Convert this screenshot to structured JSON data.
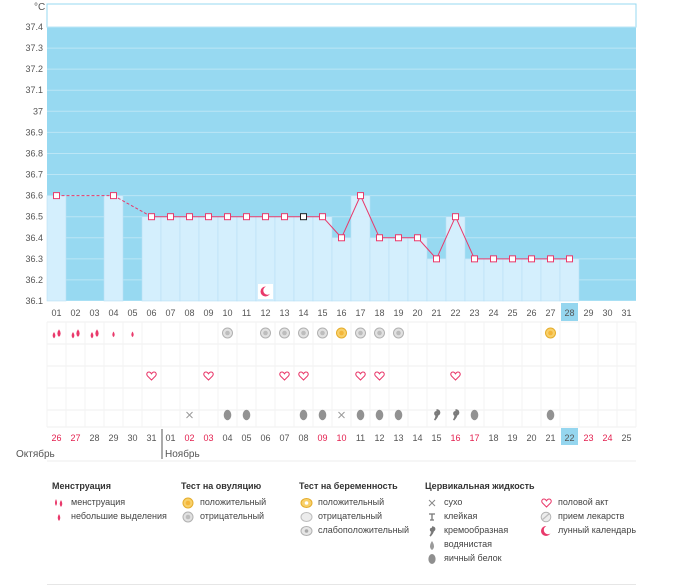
{
  "chart_data": {
    "type": "line",
    "unit_label": "°C",
    "y_ticks": [
      "37.4",
      "37.3",
      "37.2",
      "37.1",
      "37",
      "36.9",
      "36.8",
      "36.7",
      "36.6",
      "36.5",
      "36.4",
      "36.3",
      "36.2",
      "36.1"
    ],
    "ylim": [
      36.1,
      37.4
    ],
    "cycle_days": [
      "01",
      "02",
      "03",
      "04",
      "05",
      "06",
      "07",
      "08",
      "09",
      "10",
      "11",
      "12",
      "13",
      "14",
      "15",
      "16",
      "17",
      "18",
      "19",
      "20",
      "21",
      "22",
      "23",
      "24",
      "25",
      "26",
      "27",
      "28",
      "29",
      "30",
      "31"
    ],
    "current_cycle_day": "28",
    "temperatures": [
      36.6,
      null,
      null,
      36.6,
      null,
      36.5,
      36.5,
      36.5,
      36.5,
      36.5,
      36.5,
      36.5,
      36.5,
      36.5,
      36.5,
      36.4,
      36.6,
      36.4,
      36.4,
      36.4,
      36.3,
      36.5,
      36.3,
      36.3,
      36.3,
      36.3,
      36.3,
      36.3,
      null,
      null,
      null
    ],
    "bars_until_day_index": 27,
    "selected_point_day": "14",
    "interpolated_segments": [
      [
        0,
        3
      ],
      [
        3,
        5
      ]
    ],
    "calendar_dates": [
      "26",
      "27",
      "28",
      "29",
      "30",
      "31",
      "01",
      "02",
      "03",
      "04",
      "05",
      "06",
      "07",
      "08",
      "09",
      "10",
      "11",
      "12",
      "13",
      "14",
      "15",
      "16",
      "17",
      "18",
      "19",
      "20",
      "21",
      "22",
      "23",
      "24",
      "25"
    ],
    "weekend_dates_idx": [
      0,
      1,
      7,
      8,
      14,
      15,
      21,
      22,
      28,
      29
    ],
    "today_date": "22",
    "month_labels": [
      {
        "label": "Октябрь",
        "start_index": 0
      },
      {
        "label": "Ноябрь",
        "start_index": 6
      }
    ],
    "events": {
      "menstruation": [
        [
          0,
          "heavy"
        ],
        [
          1,
          "heavy"
        ],
        [
          2,
          "heavy"
        ],
        [
          3,
          "light"
        ],
        [
          4,
          "light"
        ]
      ],
      "ovulation_test": [
        [
          9,
          "negative"
        ],
        [
          11,
          "negative"
        ],
        [
          12,
          "negative"
        ],
        [
          13,
          "negative"
        ],
        [
          14,
          "negative"
        ],
        [
          15,
          "positive"
        ],
        [
          16,
          "negative"
        ],
        [
          17,
          "negative"
        ],
        [
          18,
          "negative"
        ],
        [
          26,
          "positive"
        ]
      ],
      "pregnancy_test": [],
      "intercourse": [
        5,
        8,
        12,
        13,
        16,
        17,
        21
      ],
      "moon": [
        11
      ],
      "cervical_fluid": [
        [
          7,
          "dry"
        ],
        [
          9,
          "water"
        ],
        [
          10,
          "water"
        ],
        [
          13,
          "water"
        ],
        [
          14,
          "water"
        ],
        [
          15,
          "dry"
        ],
        [
          16,
          "water"
        ],
        [
          17,
          "water"
        ],
        [
          18,
          "water"
        ],
        [
          20,
          "cream"
        ],
        [
          21,
          "cream"
        ],
        [
          22,
          "water"
        ],
        [
          26,
          "water"
        ]
      ]
    }
  },
  "legend": {
    "menstruation": {
      "title": "Менструация",
      "items": [
        "менструация",
        "небольшие выделения"
      ]
    },
    "ovulation": {
      "title": "Тест на овуляцию",
      "items": [
        "положительный",
        "отрицательный"
      ]
    },
    "pregnancy": {
      "title": "Тест на беременность",
      "items": [
        "положительный",
        "отрицательный",
        "слабоположительный"
      ]
    },
    "cervical": {
      "title": "Цервикальная жидкость",
      "items": [
        "сухо",
        "клейкая",
        "кремообразная",
        "водянистая",
        "яичный белок"
      ]
    },
    "other": {
      "items": [
        "половой акт",
        "прием лекарств",
        "лунный календарь"
      ]
    }
  },
  "colors": {
    "sky": "#97d9f1",
    "bar": "#d4effd",
    "bar_edge": "#b8dff5",
    "line": "#e9396b",
    "weekend": "#e3204f",
    "today": "#95d6ef"
  }
}
